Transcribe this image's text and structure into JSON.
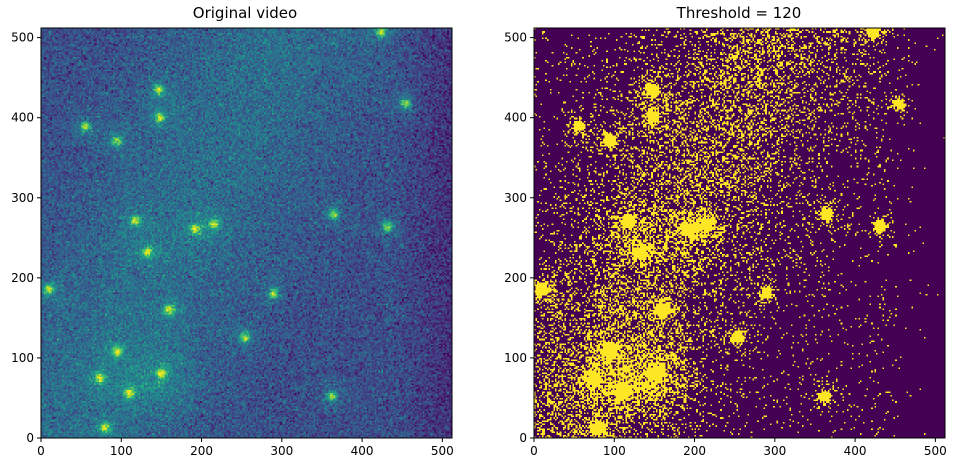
{
  "chart_data": [
    {
      "type": "heatmap",
      "title": "Original video",
      "xlabel": "",
      "ylabel": "",
      "xlim": [
        0,
        512
      ],
      "ylim": [
        0,
        512
      ],
      "x_ticks": [
        0,
        100,
        200,
        300,
        400,
        500
      ],
      "y_ticks": [
        0,
        100,
        200,
        300,
        400,
        500
      ],
      "colormap": "viridis",
      "bright_spots": [
        {
          "x": 148,
          "y": 400
        },
        {
          "x": 147,
          "y": 435
        },
        {
          "x": 55,
          "y": 389
        },
        {
          "x": 95,
          "y": 371
        },
        {
          "x": 118,
          "y": 271
        },
        {
          "x": 192,
          "y": 261
        },
        {
          "x": 216,
          "y": 267
        },
        {
          "x": 133,
          "y": 232
        },
        {
          "x": 365,
          "y": 279
        },
        {
          "x": 432,
          "y": 264
        },
        {
          "x": 424,
          "y": 507
        },
        {
          "x": 455,
          "y": 418
        },
        {
          "x": 10,
          "y": 186
        },
        {
          "x": 160,
          "y": 160
        },
        {
          "x": 254,
          "y": 125
        },
        {
          "x": 95,
          "y": 108
        },
        {
          "x": 73,
          "y": 75
        },
        {
          "x": 110,
          "y": 56
        },
        {
          "x": 150,
          "y": 80
        },
        {
          "x": 80,
          "y": 13
        },
        {
          "x": 290,
          "y": 180
        },
        {
          "x": 362,
          "y": 52
        }
      ]
    },
    {
      "type": "heatmap",
      "title": "Threshold = 120",
      "xlabel": "",
      "ylabel": "",
      "threshold": 120,
      "xlim": [
        0,
        512
      ],
      "ylim": [
        0,
        512
      ],
      "x_ticks": [
        0,
        100,
        200,
        300,
        400,
        500
      ],
      "y_ticks": [
        0,
        100,
        200,
        300,
        400,
        500
      ],
      "colormap": "viridis-binary",
      "colors": {
        "below": "#440154",
        "above": "#fde725"
      }
    }
  ]
}
